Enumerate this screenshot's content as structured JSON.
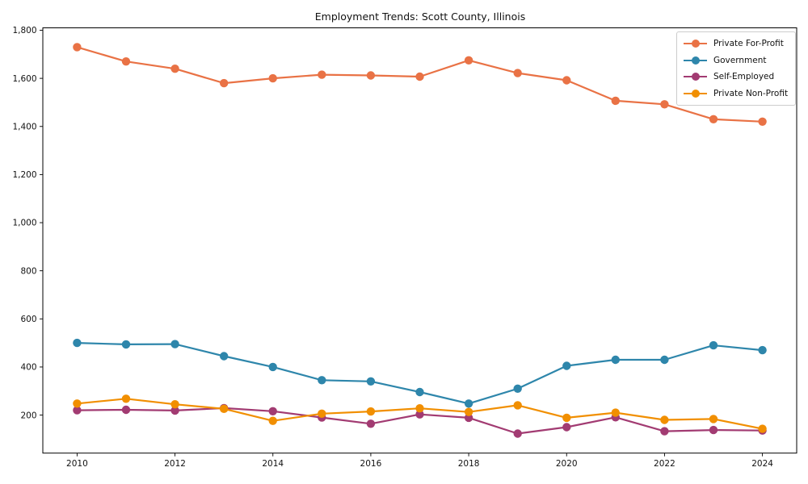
{
  "chart_data": {
    "type": "line",
    "title": "Employment Trends: Scott County, Illinois",
    "xlabel": "",
    "ylabel": "",
    "x": [
      2010,
      2011,
      2012,
      2013,
      2014,
      2015,
      2016,
      2017,
      2018,
      2019,
      2020,
      2021,
      2022,
      2023,
      2024
    ],
    "xticks": [
      2010,
      2012,
      2014,
      2016,
      2018,
      2020,
      2022,
      2024
    ],
    "yticks": [
      200,
      400,
      600,
      800,
      1000,
      1200,
      1400,
      1600,
      1800
    ],
    "xlim": [
      2009.3,
      2024.7
    ],
    "ylim": [
      42,
      1810
    ],
    "grid": false,
    "legend_position": "upper right",
    "marker": "o",
    "series": [
      {
        "name": "Private For-Profit",
        "color": "#E97245",
        "values": [
          1730,
          1670,
          1640,
          1580,
          1600,
          1615,
          1612,
          1607,
          1675,
          1622,
          1592,
          1507,
          1492,
          1430,
          1420
        ]
      },
      {
        "name": "Government",
        "color": "#2E86AB",
        "values": [
          500,
          494,
          495,
          445,
          400,
          345,
          340,
          296,
          248,
          310,
          405,
          430,
          430,
          490,
          470
        ]
      },
      {
        "name": "Self-Employed",
        "color": "#A23B72",
        "values": [
          220,
          222,
          219,
          229,
          216,
          190,
          164,
          203,
          189,
          123,
          150,
          191,
          133,
          138,
          136
        ]
      },
      {
        "name": "Private Non-Profit",
        "color": "#F18F01",
        "values": [
          248,
          268,
          245,
          226,
          176,
          206,
          215,
          228,
          213,
          241,
          189,
          210,
          180,
          184,
          143
        ]
      }
    ]
  }
}
